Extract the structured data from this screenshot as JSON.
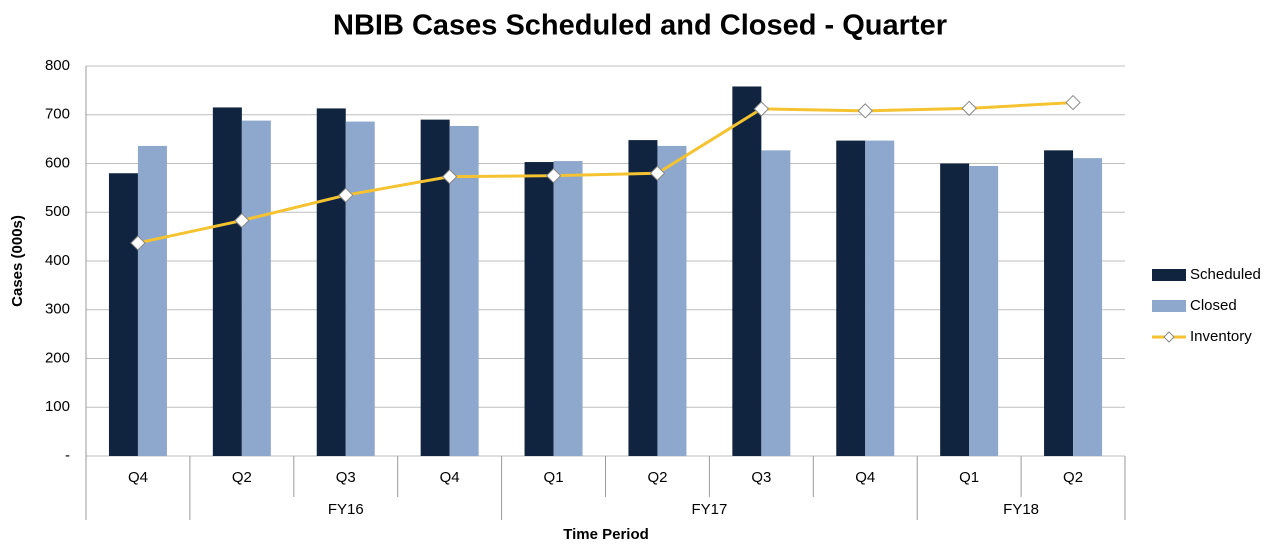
{
  "chart_data": {
    "type": "bar_line",
    "title": "NBIB Cases Scheduled and Closed - Quarter",
    "y_label": "Cases (000s)",
    "x_label": "Time Period",
    "categories": [
      "Q4",
      "Q2",
      "Q3",
      "Q4",
      "Q1",
      "Q2",
      "Q3",
      "Q4",
      "Q1",
      "Q2"
    ],
    "category_groups": [
      null,
      "FY16",
      "FY16",
      "FY16",
      "FY17",
      "FY17",
      "FY17",
      "FY17",
      "FY18",
      "FY18"
    ],
    "series": [
      {
        "name": "Scheduled",
        "type": "bar",
        "color": "#10243f",
        "values": [
          580,
          715,
          713,
          690,
          603,
          648,
          758,
          647,
          600,
          627
        ]
      },
      {
        "name": "Closed",
        "type": "bar",
        "color": "#8da8cc",
        "values": [
          636,
          688,
          686,
          677,
          605,
          636,
          627,
          647,
          595,
          611
        ]
      },
      {
        "name": "Inventory",
        "type": "line",
        "color": "#f5c230",
        "values": [
          437,
          483,
          535,
          573,
          575,
          580,
          712,
          708,
          713,
          725
        ]
      }
    ],
    "ylim": [
      0,
      800
    ],
    "yticks": [
      {
        "value": 0,
        "label": "-"
      },
      100,
      200,
      300,
      400,
      500,
      600,
      700,
      800
    ],
    "grid": true,
    "legend": "right"
  }
}
